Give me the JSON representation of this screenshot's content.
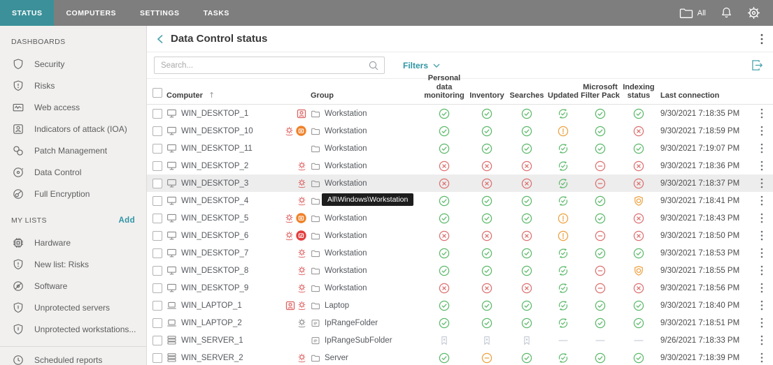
{
  "topbar": {
    "tabs": [
      {
        "label": "STATUS",
        "active": true
      },
      {
        "label": "COMPUTERS",
        "active": false
      },
      {
        "label": "SETTINGS",
        "active": false
      },
      {
        "label": "TASKS",
        "active": false
      }
    ],
    "scope_label": "All"
  },
  "sidebar": {
    "sections": [
      {
        "title": "DASHBOARDS",
        "items": [
          {
            "icon": "shield-icon",
            "label": "Security"
          },
          {
            "icon": "shield-exclamation-icon",
            "label": "Risks"
          },
          {
            "icon": "web-access-icon",
            "label": "Web access"
          },
          {
            "icon": "person-badge-icon",
            "label": "Indicators of attack (IOA)"
          },
          {
            "icon": "patch-management-icon",
            "label": "Patch Management"
          },
          {
            "icon": "data-control-icon",
            "label": "Data Control"
          },
          {
            "icon": "full-encryption-icon",
            "label": "Full Encryption"
          }
        ]
      },
      {
        "title": "MY LISTS",
        "action_label": "Add",
        "items": [
          {
            "icon": "hardware-icon",
            "label": "Hardware"
          },
          {
            "icon": "shield-exclamation-icon",
            "label": "New list: Risks"
          },
          {
            "icon": "software-icon",
            "label": "Software"
          },
          {
            "icon": "shield-bar-icon",
            "label": "Unprotected servers"
          },
          {
            "icon": "shield-bar-icon",
            "label": "Unprotected workstations..."
          }
        ]
      },
      {
        "divider": true,
        "items": [
          {
            "icon": "clock-icon",
            "label": "Scheduled reports"
          }
        ]
      }
    ]
  },
  "main": {
    "title": "Data Control status",
    "search": {
      "placeholder": "Search..."
    },
    "filters_label": "Filters",
    "table": {
      "columns": [
        {
          "key": "select",
          "label": ""
        },
        {
          "key": "computer",
          "label": "Computer",
          "sort": "asc"
        },
        {
          "key": "alerts",
          "label": ""
        },
        {
          "key": "group",
          "label": "Group"
        },
        {
          "key": "pdm",
          "label": "Personal data monitoring"
        },
        {
          "key": "inventory",
          "label": "Inventory"
        },
        {
          "key": "searches",
          "label": "Searches"
        },
        {
          "key": "updated",
          "label": "Updated"
        },
        {
          "key": "msfp",
          "label": "Microsoft Filter Pack"
        },
        {
          "key": "indexing",
          "label": "Indexing status"
        },
        {
          "key": "last",
          "label": "Last connection"
        },
        {
          "key": "menu",
          "label": ""
        }
      ],
      "rows": [
        {
          "name": "WIN_DESKTOP_1",
          "device": "desktop",
          "alerts": [
            "ioa"
          ],
          "group": "Workstation",
          "folder": "folder",
          "status": [
            "check",
            "check",
            "check",
            "sync",
            "check",
            "check"
          ],
          "last": "9/30/2021 7:18:35 PM"
        },
        {
          "name": "WIN_DESKTOP_10",
          "device": "desktop",
          "alerts": [
            "gear-red",
            "circle-x-orange"
          ],
          "group": "Workstation",
          "folder": "folder",
          "status": [
            "check",
            "check",
            "check",
            "warn",
            "check",
            "error"
          ],
          "last": "9/30/2021 7:18:59 PM"
        },
        {
          "name": "WIN_DESKTOP_11",
          "device": "desktop",
          "alerts": [],
          "group": "Workstation",
          "folder": "folder",
          "status": [
            "check",
            "check",
            "check",
            "sync",
            "check",
            "check"
          ],
          "last": "9/30/2021 7:19:07 PM"
        },
        {
          "name": "WIN_DESKTOP_2",
          "device": "desktop",
          "alerts": [
            "gear-red"
          ],
          "group": "Workstation",
          "folder": "folder",
          "status": [
            "error",
            "error",
            "error",
            "sync",
            "minus-red",
            "error"
          ],
          "last": "9/30/2021 7:18:36 PM"
        },
        {
          "name": "WIN_DESKTOP_3",
          "device": "desktop",
          "alerts": [
            "gear-red"
          ],
          "group": "Workstation",
          "folder": "folder",
          "status": [
            "error",
            "error",
            "error",
            "sync",
            "minus-red",
            "error"
          ],
          "last": "9/30/2021 7:18:37 PM",
          "highlighted": true
        },
        {
          "name": "WIN_DESKTOP_4",
          "device": "desktop",
          "alerts": [
            "gear-red"
          ],
          "group": "Workstation",
          "folder": "folder",
          "status": [
            "check",
            "check",
            "check",
            "sync",
            "check",
            "shield-orange"
          ],
          "last": "9/30/2021 7:18:41 PM",
          "group_tooltip": "All\\Windows\\Workstation"
        },
        {
          "name": "WIN_DESKTOP_5",
          "device": "desktop",
          "alerts": [
            "gear-red",
            "circle-x-orange"
          ],
          "group": "Workstation",
          "folder": "folder",
          "status": [
            "check",
            "check",
            "check",
            "warn",
            "check",
            "error"
          ],
          "last": "9/30/2021 7:18:43 PM"
        },
        {
          "name": "WIN_DESKTOP_6",
          "device": "desktop",
          "alerts": [
            "gear-red",
            "circle-check-red"
          ],
          "group": "Workstation",
          "folder": "folder",
          "status": [
            "error",
            "error",
            "error",
            "warn",
            "minus-red",
            "error"
          ],
          "last": "9/30/2021 7:18:50 PM"
        },
        {
          "name": "WIN_DESKTOP_7",
          "device": "desktop",
          "alerts": [
            "gear-red"
          ],
          "group": "Workstation",
          "folder": "folder",
          "status": [
            "check",
            "check",
            "check",
            "sync",
            "check",
            "check"
          ],
          "last": "9/30/2021 7:18:53 PM"
        },
        {
          "name": "WIN_DESKTOP_8",
          "device": "desktop",
          "alerts": [
            "gear-red"
          ],
          "group": "Workstation",
          "folder": "folder",
          "status": [
            "check",
            "check",
            "check",
            "sync",
            "minus-red",
            "shield-orange"
          ],
          "last": "9/30/2021 7:18:55 PM"
        },
        {
          "name": "WIN_DESKTOP_9",
          "device": "desktop",
          "alerts": [
            "gear-red"
          ],
          "group": "Workstation",
          "folder": "folder",
          "status": [
            "error",
            "error",
            "error",
            "sync",
            "minus-red",
            "error"
          ],
          "last": "9/30/2021 7:18:56 PM"
        },
        {
          "name": "WIN_LAPTOP_1",
          "device": "laptop",
          "alerts": [
            "ioa",
            "gear-red"
          ],
          "group": "Laptop",
          "folder": "folder",
          "status": [
            "check",
            "check",
            "check",
            "sync",
            "check",
            "check"
          ],
          "last": "9/30/2021 7:18:40 PM"
        },
        {
          "name": "WIN_LAPTOP_2",
          "device": "laptop",
          "alerts": [
            "gear-gray"
          ],
          "group": "IpRangeFolder",
          "folder": "ip-folder",
          "status": [
            "check",
            "check",
            "check",
            "sync",
            "check",
            "check"
          ],
          "last": "9/30/2021 7:18:51 PM"
        },
        {
          "name": "WIN_SERVER_1",
          "device": "server",
          "alerts": [],
          "group": "IpRangeSubFolder",
          "folder": "ip-folder",
          "status": [
            "na",
            "na",
            "na",
            "dash",
            "dash",
            "dash"
          ],
          "last": "9/26/2021 7:18:33 PM"
        },
        {
          "name": "WIN_SERVER_2",
          "device": "server",
          "alerts": [
            "gear-red"
          ],
          "group": "Server",
          "folder": "folder",
          "status": [
            "check",
            "minus-orange",
            "check",
            "sync",
            "check",
            "check"
          ],
          "last": "9/30/2021 7:18:39 PM"
        }
      ]
    }
  },
  "colors": {
    "accent_teal": "#3b9099",
    "link_teal": "#2f95a4",
    "status_green": "#5cb96a",
    "status_red": "#dd7070",
    "status_orange": "#eca13f",
    "status_na_gray": "#c3cad4"
  }
}
